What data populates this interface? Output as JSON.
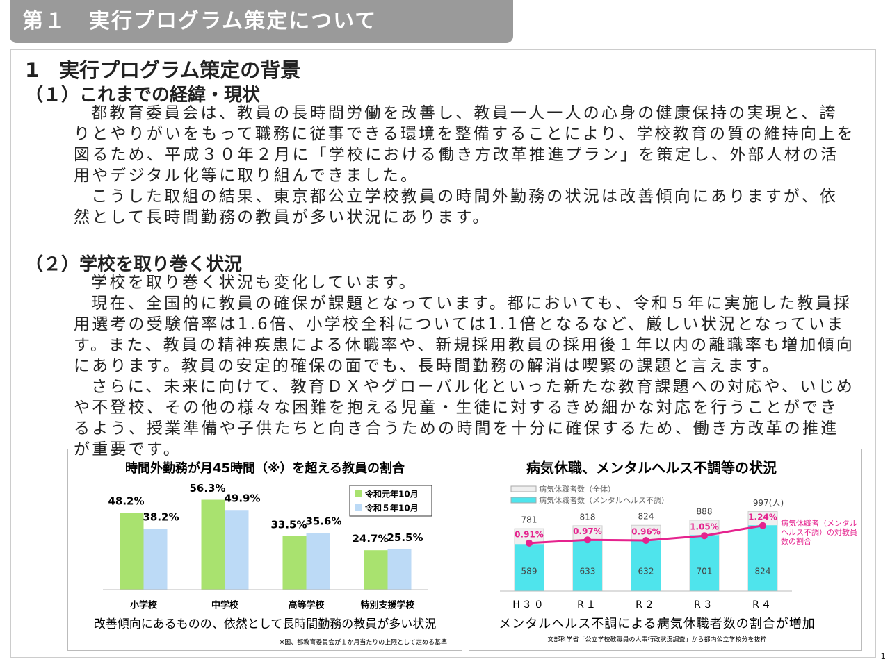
{
  "header": {
    "title": "第１　実行プログラム策定について"
  },
  "section": {
    "title": "1　実行プログラム策定の背景"
  },
  "subsections": [
    {
      "title": "（１）これまでの経緯・現状",
      "paragraphs": [
        "都教育委員会は、教員の長時間労働を改善し、教員一人一人の心身の健康保持の実現と、誇りとやりがいをもって職務に従事できる環境を整備することにより、学校教育の質の維持向上を図るため、平成３０年２月に「学校における働き方改革推進プラン」を策定し、外部人材の活用やデジタル化等に取り組んできました。",
        "こうした取組の結果、東京都公立学校教員の時間外勤務の状況は改善傾向にありますが、依然として長時間勤務の教員が多い状況にあります。"
      ]
    },
    {
      "title": "（２）学校を取り巻く状況",
      "paragraphs": [
        "学校を取り巻く状況も変化しています。",
        "現在、全国的に教員の確保が課題となっています。都においても、令和５年に実施した教員採用選考の受験倍率は1.6倍、小学校全科については1.1倍となるなど、厳しい状況となっています。また、教員の精神疾患による休職率や、新規採用教員の採用後１年以内の離職率も増加傾向にあります。教員の安定的確保の面でも、長時間勤務の解消は喫緊の課題と言えます。",
        "さらに、未来に向けて、教育ＤＸやグローバル化といった新たな教育課題への対応や、いじめや不登校、その他の様々な困難を抱える児童・生徒に対するきめ細かな対応を行うことができるよう、授業準備や子供たちと向き合うための時間を十分に確保するため、働き方改革の推進が重要です。"
      ]
    }
  ],
  "chart_data": [
    {
      "type": "bar",
      "title": "時間外勤務が月45時間（※）を超える教員の割合",
      "categories": [
        "小学校",
        "中学校",
        "高等学校",
        "特別支援学校"
      ],
      "series": [
        {
          "name": "令和元年10月",
          "color": "#a9e26f",
          "values": [
            48.2,
            56.3,
            33.5,
            24.7
          ],
          "value_labels": [
            "48.2%",
            "56.3%",
            "33.5%",
            "24.7%"
          ]
        },
        {
          "name": "令和５年10月",
          "color": "#bcdaf6",
          "values": [
            38.2,
            49.9,
            35.6,
            25.5
          ],
          "value_labels": [
            "38.2%",
            "49.9%",
            "35.6%",
            "25.5%"
          ]
        }
      ],
      "caption": "改善傾向にあるものの、依然として長時間勤務の教員が多い状況",
      "note": "※国、都教育委員会が１か月当たりの上限として定める基準"
    },
    {
      "type": "bar",
      "title": "病気休職、メンタルヘルス不調等の状況",
      "categories": [
        "H３０",
        "R１",
        "R２",
        "R３",
        "R４"
      ],
      "series": [
        {
          "name": "病気休職者数（全体）",
          "color": "#efefef",
          "values": [
            781,
            818,
            824,
            888,
            997
          ],
          "value_labels": [
            "781",
            "818",
            "824",
            "888",
            "997(人)"
          ]
        },
        {
          "name": "病気休職者数（メンタルヘルス不調）",
          "color": "#4fe4ec",
          "values": [
            589,
            633,
            632,
            701,
            824
          ]
        },
        {
          "name": "病気休職者（メンタルヘルス不調）の対教員数の割合",
          "type": "line",
          "axis": "y2",
          "color": "#e5238e",
          "values": [
            0.91,
            0.97,
            0.96,
            1.05,
            1.24
          ],
          "value_labels": [
            "0.91%",
            "0.97%",
            "0.96%",
            "1.05%",
            "1.24%"
          ]
        }
      ],
      "caption": "メンタルヘルス不調による病気休職者数の割合が増加",
      "source": "文部科学省「公立学校教職員の人事行政状況調査」から都内公立学校分を抜粋"
    }
  ],
  "page_number": "1"
}
